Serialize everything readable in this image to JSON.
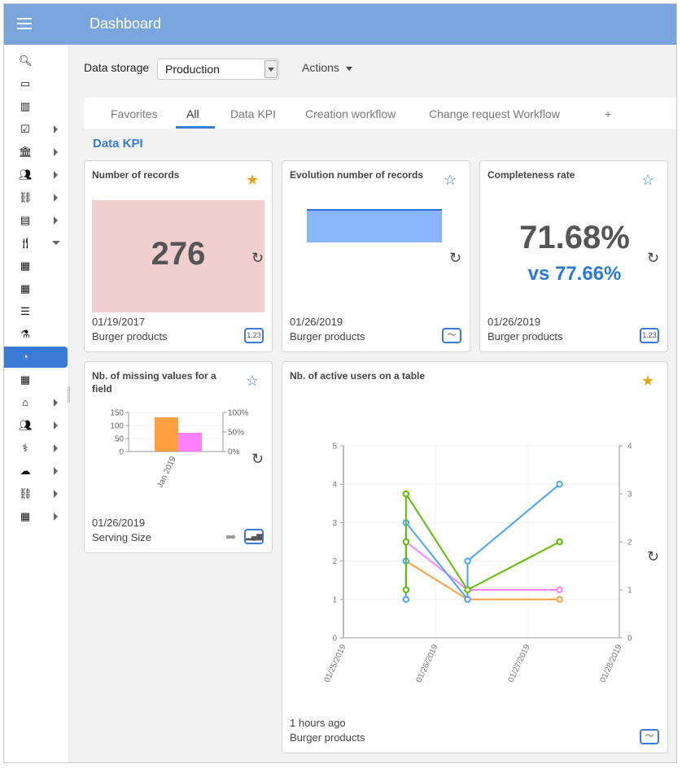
{
  "header": {
    "title": "Dashboard",
    "menu_icon": "hamburger-icon"
  },
  "sidebar": {
    "items": [
      {
        "icon": "search-icon",
        "glyph": "🔍︎",
        "arrow": ""
      },
      {
        "icon": "inbox-icon",
        "glyph": "▭",
        "arrow": ""
      },
      {
        "icon": "bar-chart-icon",
        "glyph": "▥",
        "arrow": ""
      },
      {
        "icon": "checkbox-icon",
        "glyph": "☑",
        "arrow": "right"
      },
      {
        "icon": "bank-icon",
        "glyph": "🏛︎",
        "arrow": "right"
      },
      {
        "icon": "users-icon",
        "glyph": "👥︎",
        "arrow": "right"
      },
      {
        "icon": "sitemap-icon",
        "glyph": "⛓",
        "arrow": "right"
      },
      {
        "icon": "document-icon",
        "glyph": "▤",
        "arrow": "right"
      },
      {
        "icon": "cutlery-icon",
        "glyph": "🍴︎",
        "arrow": "down"
      },
      {
        "icon": "grid-icon",
        "glyph": "▦",
        "arrow": ""
      },
      {
        "icon": "grid-icon",
        "glyph": "▦",
        "arrow": ""
      },
      {
        "icon": "list-icon",
        "glyph": "☰",
        "arrow": ""
      },
      {
        "icon": "flask-icon",
        "glyph": "⚗",
        "arrow": ""
      },
      {
        "icon": "pie-chart-icon",
        "glyph": "◔",
        "arrow": "",
        "selected": true
      },
      {
        "icon": "grid-icon",
        "glyph": "▦",
        "arrow": ""
      },
      {
        "icon": "home-icon",
        "glyph": "⌂",
        "arrow": "right"
      },
      {
        "icon": "users-icon",
        "glyph": "👥︎",
        "arrow": "right"
      },
      {
        "icon": "stethoscope-icon",
        "glyph": "⚕",
        "arrow": "right"
      },
      {
        "icon": "cloud-icon",
        "glyph": "☁",
        "arrow": "right"
      },
      {
        "icon": "sitemap-icon",
        "glyph": "⛓",
        "arrow": "right"
      },
      {
        "icon": "calculator-icon",
        "glyph": "▦",
        "arrow": "right"
      }
    ]
  },
  "toolbar": {
    "storage_label": "Data storage",
    "storage_value": "Production",
    "actions_label": "Actions"
  },
  "tabs": [
    {
      "label": "Favorites"
    },
    {
      "label": "All",
      "active": true
    },
    {
      "label": "Data KPI"
    },
    {
      "label": "Creation workflow"
    },
    {
      "label": "Change request Workflow"
    },
    {
      "label": "+"
    }
  ],
  "section_title": "Data KPI",
  "cards": {
    "records": {
      "title": "Number of records",
      "value": "276",
      "date": "01/19/2017",
      "source": "Burger products",
      "favorite": true,
      "badge": "1.23",
      "bg": "#efcfcf"
    },
    "evolution": {
      "title": "Evolution number of records",
      "date": "01/26/2019",
      "source": "Burger products",
      "favorite": false,
      "badge": "line-chart-icon"
    },
    "completeness": {
      "title": "Completeness rate",
      "value": "71.68%",
      "compare": "vs 77.66%",
      "date": "01/26/2019",
      "source": "Burger products",
      "favorite": false,
      "badge": "1.23"
    },
    "missing": {
      "title": "Nb. of missing values for a field",
      "date": "01/26/2019",
      "source": "Serving Size",
      "favorite": false,
      "badge": "bar-chart-icon"
    },
    "active_users": {
      "title": "Nb. of active users on a table",
      "date": "1 hours ago",
      "source": "Burger products",
      "favorite": true,
      "badge": "line-chart-icon"
    }
  },
  "chart_data": [
    {
      "type": "area",
      "colors": [
        "#8ab4f8",
        "#2f6fd6"
      ],
      "values": [
        1,
        1
      ]
    },
    {
      "type": "bar",
      "categories": [
        "Jan 2019"
      ],
      "ylim": [
        0,
        150
      ],
      "yticks": [
        "0",
        "50",
        "100",
        "150"
      ],
      "y2lim": [
        0,
        100
      ],
      "y2ticks": [
        "0%",
        "50%",
        "100%"
      ],
      "series": [
        {
          "axis": "left",
          "color": "#ff9f40",
          "values": [
            131
          ]
        },
        {
          "axis": "right",
          "color": "#ff80ff",
          "values": [
            48
          ]
        }
      ]
    },
    {
      "type": "line",
      "xlim": [
        "01/25/2019",
        "01/28/2019"
      ],
      "xticks": [
        "01/25/2019",
        "01/26/2019",
        "01/27/2019",
        "01/28/2019"
      ],
      "ylim": [
        0,
        5
      ],
      "yticks": [
        "0",
        "1",
        "2",
        "3",
        "4",
        "5"
      ],
      "y2lim": [
        0,
        4
      ],
      "y2ticks": [
        "0",
        "1",
        "2",
        "3",
        "4"
      ],
      "series": [
        {
          "axis": "left",
          "color": "#ff9f40",
          "points": [
            [
              0.68,
              2
            ],
            [
              1.35,
              1
            ],
            [
              2.35,
              1
            ]
          ]
        },
        {
          "axis": "right",
          "color": "#ff80ff",
          "points": [
            [
              0.68,
              2
            ],
            [
              1.35,
              1
            ],
            [
              2.35,
              1
            ]
          ]
        },
        {
          "axis": "left",
          "color": "#4aa3ff",
          "points": [
            [
              0.68,
              1
            ],
            [
              0.68,
              2
            ],
            [
              0.68,
              3
            ],
            [
              1.35,
              1
            ],
            [
              1.35,
              2
            ],
            [
              2.35,
              4
            ]
          ]
        },
        {
          "axis": "right",
          "color": "#5cbf00",
          "points": [
            [
              0.68,
              1
            ],
            [
              0.68,
              2
            ],
            [
              0.68,
              3
            ],
            [
              1.35,
              1
            ],
            [
              2.35,
              2
            ]
          ]
        }
      ]
    }
  ]
}
